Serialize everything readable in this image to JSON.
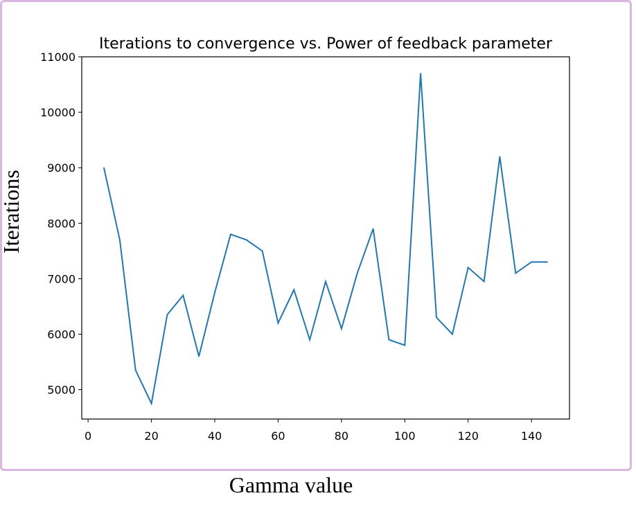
{
  "chart_data": {
    "type": "line",
    "title": "Iterations to convergence vs. Power of feedback parameter",
    "xlabel": "Gamma value",
    "ylabel": "Iterations",
    "xlim": [
      -2,
      152
    ],
    "ylim": [
      4470,
      11000
    ],
    "x_ticks": [
      0,
      20,
      40,
      60,
      80,
      100,
      120,
      140
    ],
    "y_ticks": [
      5000,
      6000,
      7000,
      8000,
      9000,
      10000,
      11000
    ],
    "grid": false,
    "line_color": "#1f77b4",
    "x": [
      5,
      10,
      15,
      20,
      25,
      30,
      35,
      40,
      45,
      50,
      55,
      60,
      65,
      70,
      75,
      80,
      85,
      90,
      95,
      100,
      105,
      110,
      115,
      120,
      125,
      130,
      135,
      140,
      145
    ],
    "y": [
      9000,
      7700,
      5350,
      4750,
      6350,
      6700,
      5600,
      6750,
      7800,
      7700,
      7500,
      6200,
      6800,
      5900,
      6950,
      6100,
      7100,
      7900,
      5900,
      5800,
      10700,
      6300,
      6000,
      7200,
      6950,
      9200,
      7100,
      7300,
      7300
    ]
  }
}
